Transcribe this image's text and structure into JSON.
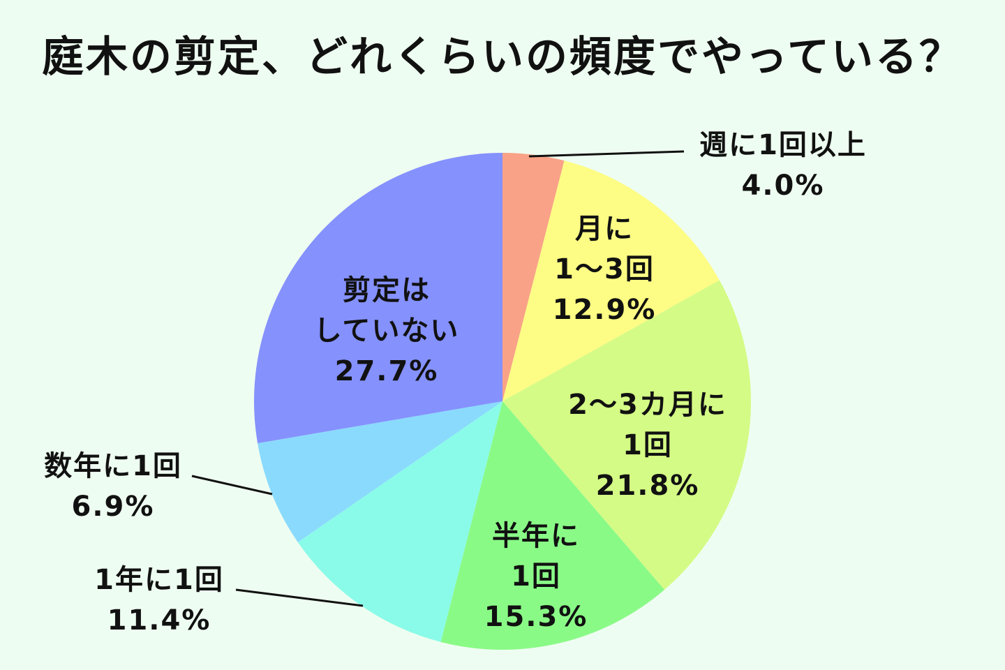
{
  "chart_data": {
    "type": "pie",
    "title": "庭木の剪定、どれくらいの頻度でやっている？",
    "start_angle_deg": 0,
    "direction": "clockwise",
    "slices": [
      {
        "label_lines": [
          "週に1回以上"
        ],
        "value_label": "4.0%",
        "value": 4.0,
        "color": "#f9a287"
      },
      {
        "label_lines": [
          "月に",
          "1〜3回"
        ],
        "value_label": "12.9%",
        "value": 12.9,
        "color": "#fdfc84"
      },
      {
        "label_lines": [
          "2〜3カ月に",
          "1回"
        ],
        "value_label": "21.8%",
        "value": 21.8,
        "color": "#d4fb85"
      },
      {
        "label_lines": [
          "半年に",
          "1回"
        ],
        "value_label": "15.3%",
        "value": 15.3,
        "color": "#8afa87"
      },
      {
        "label_lines": [
          "1年に1回"
        ],
        "value_label": "11.4%",
        "value": 11.4,
        "color": "#8afbe8"
      },
      {
        "label_lines": [
          "数年に1回"
        ],
        "value_label": "6.9%",
        "value": 6.9,
        "color": "#8adafd"
      },
      {
        "label_lines": [
          "剪定は",
          "していない"
        ],
        "value_label": "27.7%",
        "value": 27.7,
        "color": "#8591fd"
      }
    ]
  }
}
